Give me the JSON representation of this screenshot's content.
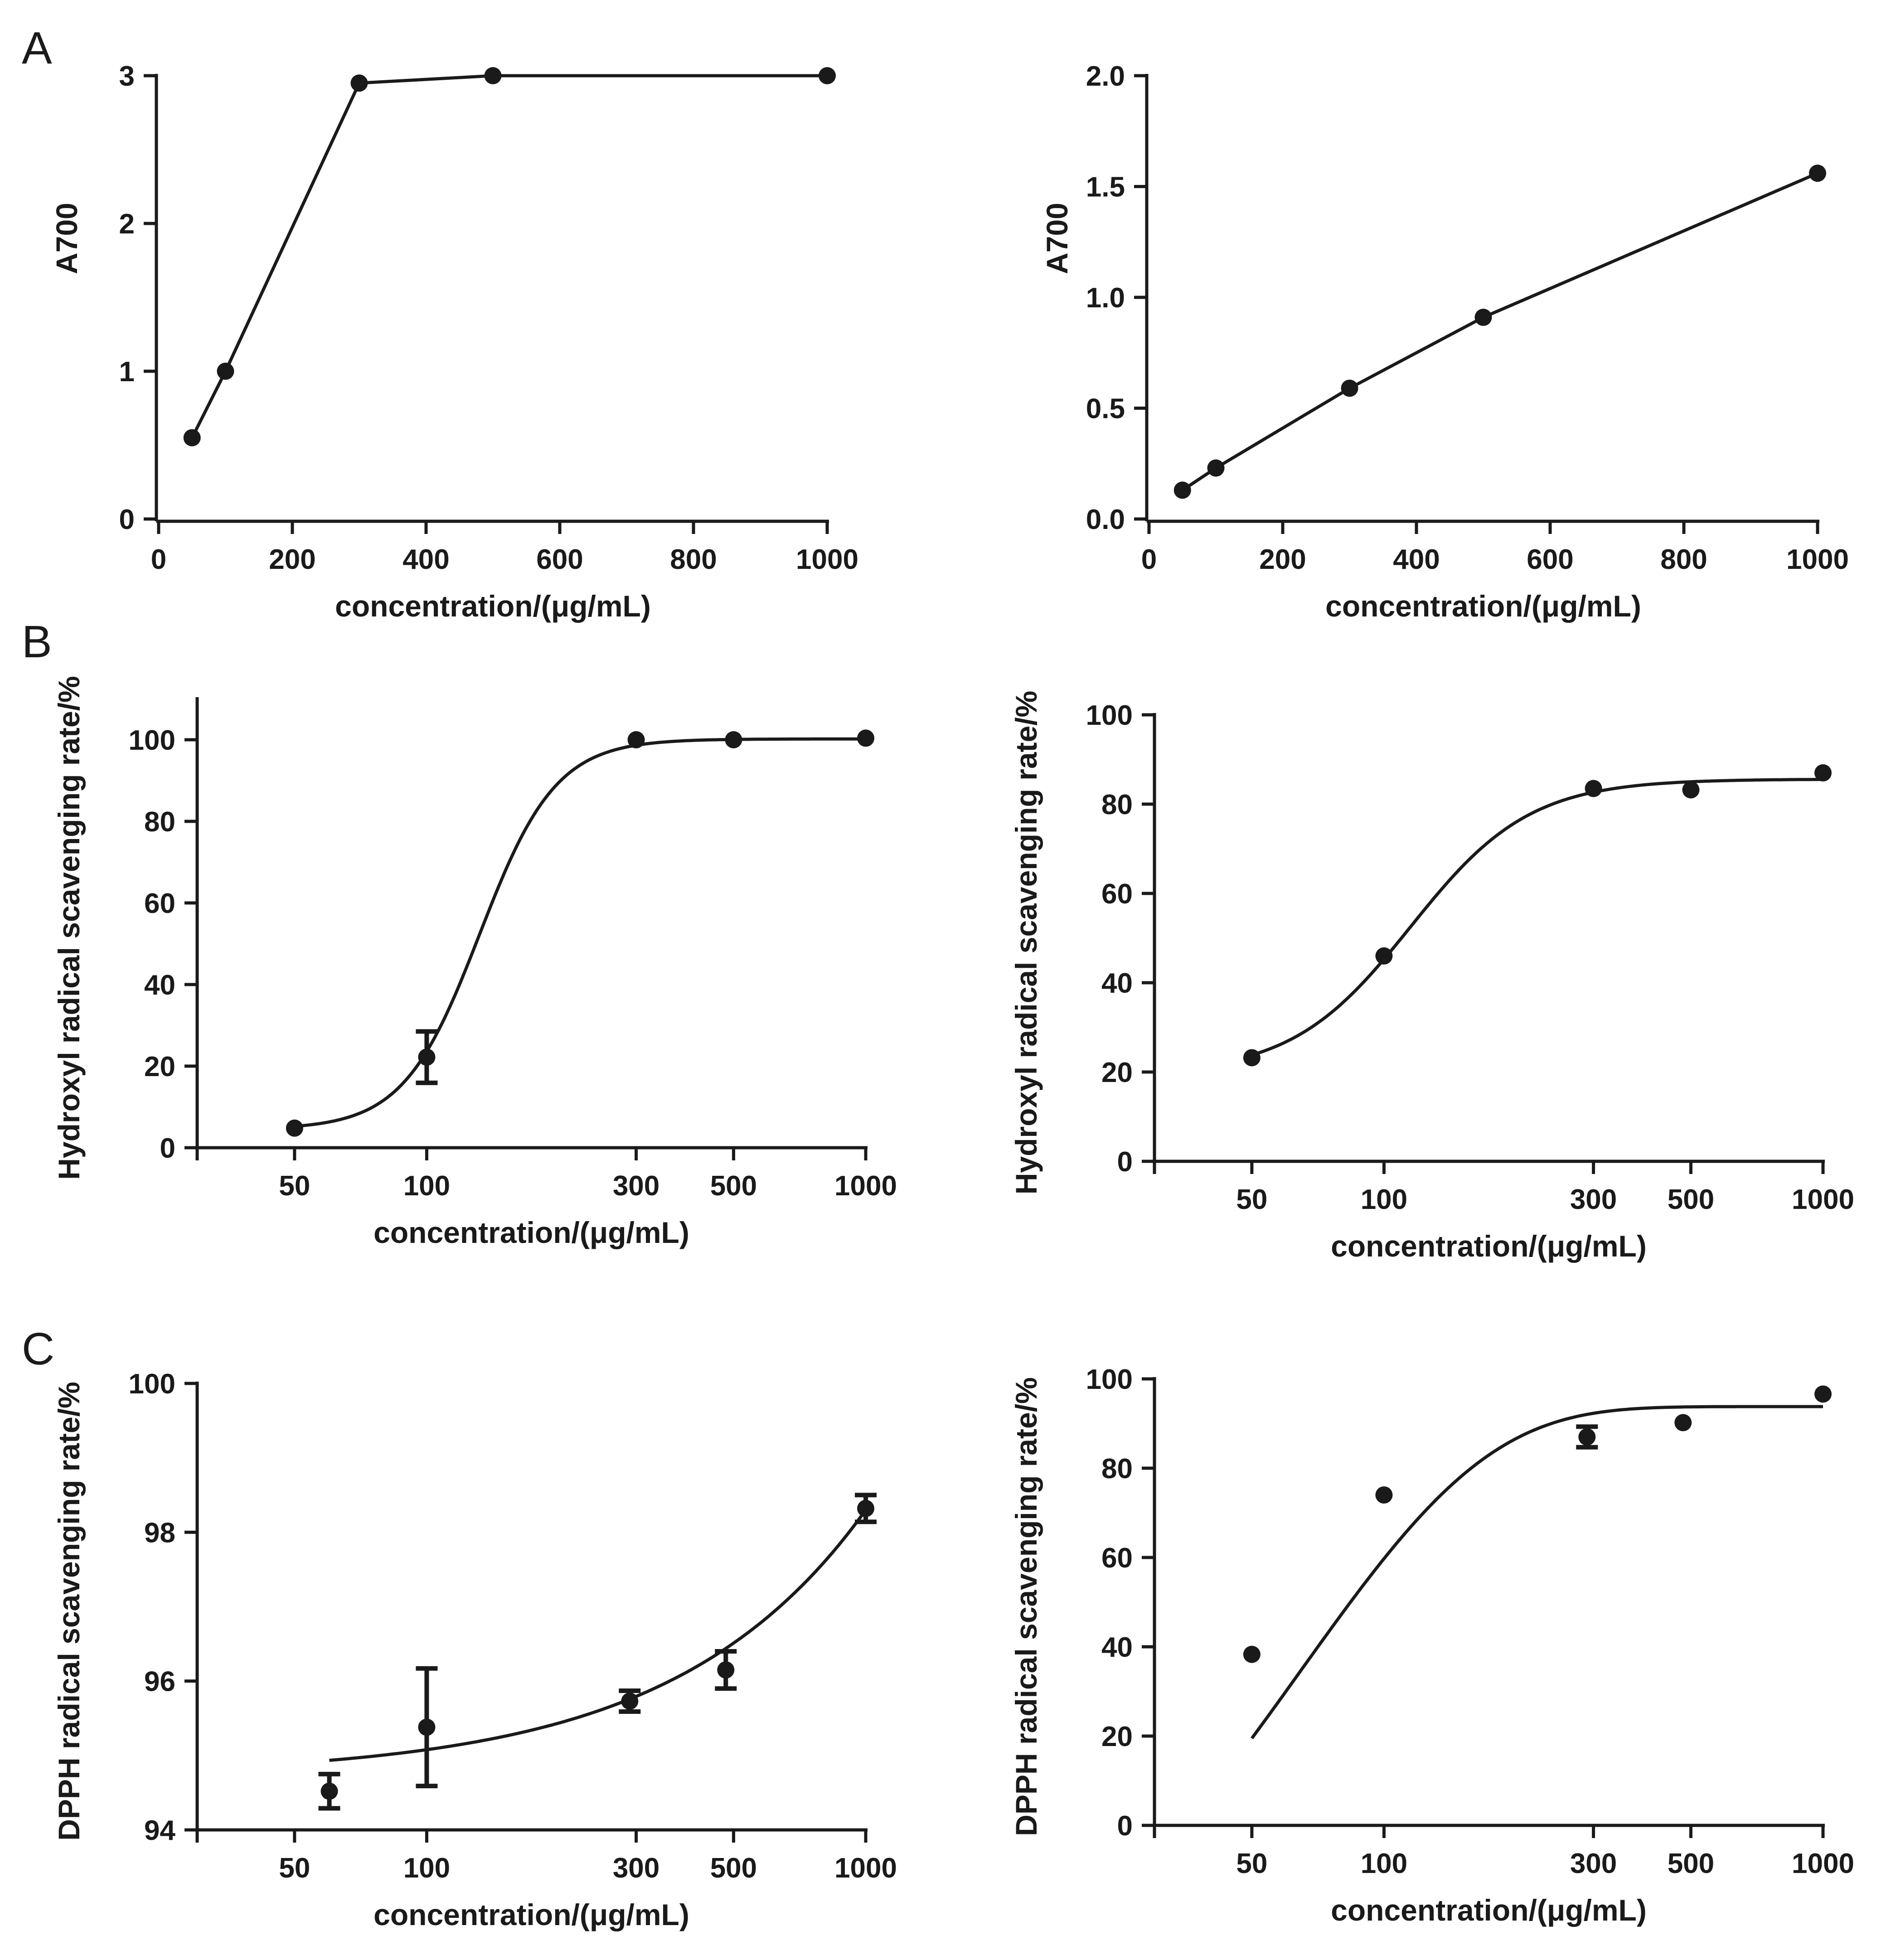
{
  "panel_labels": [
    "A",
    "B",
    "C"
  ],
  "chart_data": [
    {
      "id": "A-left",
      "panel": "A",
      "type": "line",
      "scale": "linear",
      "title": "",
      "xlabel": "concentration/(μg/mL)",
      "ylabel": "A700",
      "xlim": [
        0,
        1000
      ],
      "ylim": [
        0,
        3
      ],
      "xticks": [
        0,
        200,
        400,
        600,
        800,
        1000
      ],
      "xtick_labels": [
        "0",
        "200",
        "400",
        "600",
        "800",
        "1000"
      ],
      "yticks": [
        0,
        1,
        2,
        3
      ],
      "ytick_labels": [
        "0",
        "1",
        "2",
        "3"
      ],
      "series": [
        {
          "name": "A700",
          "x": [
            50,
            100,
            300,
            500,
            1000
          ],
          "y": [
            0.55,
            1.0,
            2.95,
            3.0,
            3.0
          ]
        }
      ]
    },
    {
      "id": "A-right",
      "panel": "A",
      "type": "line",
      "scale": "linear",
      "title": "",
      "xlabel": "concentration/(μg/mL)",
      "ylabel": "A700",
      "xlim": [
        0,
        1000
      ],
      "ylim": [
        0,
        2.0
      ],
      "xticks": [
        0,
        200,
        400,
        600,
        800,
        1000
      ],
      "xtick_labels": [
        "0",
        "200",
        "400",
        "600",
        "800",
        "1000"
      ],
      "yticks": [
        0,
        0.5,
        1.0,
        1.5,
        2.0
      ],
      "ytick_labels": [
        "0.0",
        "0.5",
        "1.0",
        "1.5",
        "2.0"
      ],
      "series": [
        {
          "name": "A700",
          "x": [
            50,
            100,
            300,
            500,
            1000
          ],
          "y": [
            0.13,
            0.23,
            0.59,
            0.91,
            1.56
          ]
        }
      ]
    },
    {
      "id": "B-left",
      "panel": "B",
      "type": "scatter",
      "scale": "log",
      "title": "",
      "xlabel": "concentration/(μg/mL)",
      "ylabel": "Hydroxyl radical scavenging rate/%",
      "xlim": [
        30,
        1000
      ],
      "ylim": [
        0,
        110
      ],
      "xticks": [
        50,
        100,
        300,
        500,
        1000
      ],
      "xtick_labels": [
        "50",
        "100",
        "300",
        "500",
        "1000"
      ],
      "yticks": [
        0,
        20,
        40,
        60,
        80,
        100
      ],
      "ytick_labels": [
        "0",
        "20",
        "40",
        "60",
        "80",
        "100"
      ],
      "series": [
        {
          "name": "Hydroxyl radical scavenging rate",
          "x": [
            50,
            100,
            300,
            500,
            1000
          ],
          "y": [
            4.8,
            22.2,
            100.0,
            100.0,
            100.4
          ],
          "err": [
            0,
            6.3,
            0,
            0,
            0
          ]
        }
      ],
      "fit": {
        "model": "sigmoid",
        "bottom": 4.5,
        "top": 100.2,
        "ec50": 132,
        "hill": 5.0,
        "x_start": 50,
        "x_end": 1000
      }
    },
    {
      "id": "B-right",
      "panel": "B",
      "type": "scatter",
      "scale": "log",
      "title": "",
      "xlabel": "concentration/(μg/mL)",
      "ylabel": "Hydroxyl radical scavenging rate/%",
      "xlim": [
        30,
        1000
      ],
      "ylim": [
        0,
        100
      ],
      "xticks": [
        50,
        100,
        300,
        500,
        1000
      ],
      "xtick_labels": [
        "50",
        "100",
        "300",
        "500",
        "1000"
      ],
      "yticks": [
        0,
        20,
        40,
        60,
        80,
        100
      ],
      "ytick_labels": [
        "0",
        "20",
        "40",
        "60",
        "80",
        "100"
      ],
      "series": [
        {
          "name": "Hydroxyl radical scavenging rate",
          "x": [
            50,
            100,
            300,
            500,
            1000
          ],
          "y": [
            23.2,
            46.0,
            83.5,
            83.2,
            87.0
          ],
          "err": [
            0,
            0,
            0,
            0,
            0
          ]
        }
      ],
      "fit": {
        "model": "sigmoid",
        "bottom": 19.5,
        "top": 85.6,
        "ec50": 115,
        "hill": 3.2,
        "x_start": 50,
        "x_end": 1000
      }
    },
    {
      "id": "C-left",
      "panel": "C",
      "type": "scatter",
      "scale": "log",
      "title": "",
      "xlabel": "concentration/(μg/mL)",
      "ylabel": "DPPH radical scavenging rate/%",
      "xlim": [
        30,
        1000
      ],
      "ylim": [
        94,
        100
      ],
      "xticks": [
        50,
        100,
        300,
        500,
        1000
      ],
      "xtick_labels": [
        "50",
        "100",
        "300",
        "500",
        "1000"
      ],
      "yticks": [
        94,
        96,
        98,
        100
      ],
      "ytick_labels": [
        "94",
        "96",
        "98",
        "100"
      ],
      "series": [
        {
          "name": "DPPH radical scavenging rate",
          "x": [
            60,
            100,
            290,
            480,
            1000
          ],
          "y": [
            94.52,
            95.38,
            95.73,
            96.15,
            98.32
          ],
          "err": [
            0.23,
            0.79,
            0.14,
            0.25,
            0.18
          ]
        }
      ],
      "fit": {
        "model": "linear",
        "a": 94.72,
        "b": 0.00358,
        "x_start": 60,
        "x_end": 1000
      }
    },
    {
      "id": "C-right",
      "panel": "C",
      "type": "scatter",
      "scale": "log",
      "title": "",
      "xlabel": "concentration/(μg/mL)",
      "ylabel": "DPPH radical scavenging rate/%",
      "xlim": [
        30,
        1000
      ],
      "ylim": [
        0,
        100
      ],
      "xticks": [
        50,
        100,
        300,
        500,
        1000
      ],
      "xtick_labels": [
        "50",
        "100",
        "300",
        "500",
        "1000"
      ],
      "yticks": [
        0,
        20,
        40,
        60,
        80,
        100
      ],
      "ytick_labels": [
        "0",
        "20",
        "40",
        "60",
        "80",
        "100"
      ],
      "series": [
        {
          "name": "DPPH radical scavenging rate",
          "x": [
            50,
            100,
            290,
            480,
            1000
          ],
          "y": [
            38.3,
            74.0,
            87.0,
            90.2,
            96.6
          ],
          "err": [
            0,
            0,
            2.3,
            0,
            0
          ]
        }
      ],
      "fit": {
        "model": "exp",
        "top": 93.8,
        "span": 162.1,
        "k": 0.0156,
        "x_start": 50,
        "x_end": 1000
      }
    }
  ]
}
